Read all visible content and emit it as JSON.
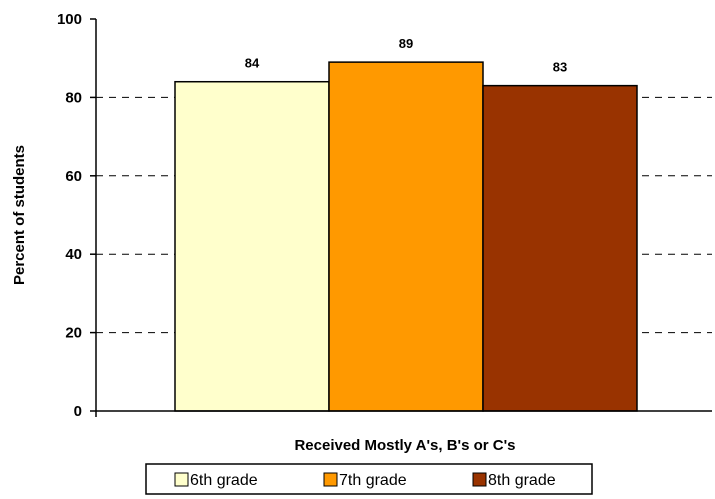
{
  "chart_data": {
    "type": "bar",
    "title": "",
    "categories": [
      "Received Mostly A's, B's or C's"
    ],
    "series": [
      {
        "name": "6th grade",
        "values": [
          84
        ],
        "color": "#FFFFCC"
      },
      {
        "name": "7th grade",
        "values": [
          89
        ],
        "color": "#FF9900"
      },
      {
        "name": "8th grade",
        "values": [
          83
        ],
        "color": "#993300"
      }
    ],
    "xlabel": "Received Mostly A's, B's or C's",
    "ylabel": "Percent of students",
    "ylim": [
      0,
      100
    ],
    "yticks": [
      0,
      20,
      40,
      60,
      80,
      100
    ],
    "grid": "dashed horizontal",
    "legend": "bottom"
  }
}
